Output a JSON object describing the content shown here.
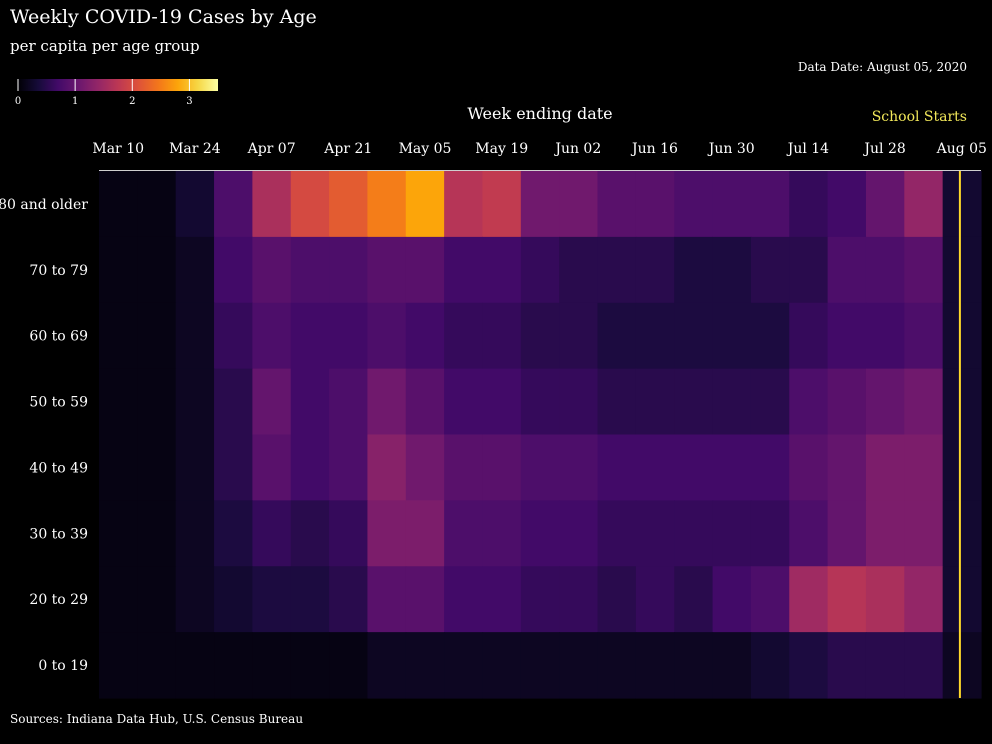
{
  "chart_data": {
    "type": "heatmap",
    "title": "Weekly COVID-19 Cases by Age",
    "subtitle": "per capita per age group",
    "data_date": "Data Date: August 05, 2020",
    "xlabel": "Week ending date",
    "ylabel": "",
    "sources": "Sources: Indiana Data Hub, U.S. Census Bureau",
    "annotation": {
      "label": "School Starts",
      "at_week": "Aug 05",
      "color": "#ffd92a"
    },
    "colorscale": {
      "name": "inferno",
      "min": 0,
      "max": 3.5,
      "ticks": [
        0,
        1,
        2,
        3
      ]
    },
    "x_ticks": [
      "Mar 10",
      "Mar 24",
      "Apr 07",
      "Apr 21",
      "May 05",
      "May 19",
      "Jun 02",
      "Jun 16",
      "Jun 30",
      "Jul 14",
      "Jul 28",
      "Aug 05"
    ],
    "weeks": [
      "Mar 10",
      "Mar 17",
      "Mar 24",
      "Mar 31",
      "Apr 07",
      "Apr 14",
      "Apr 21",
      "Apr 28",
      "May 05",
      "May 12",
      "May 19",
      "May 26",
      "Jun 02",
      "Jun 09",
      "Jun 16",
      "Jun 23",
      "Jun 30",
      "Jul 07",
      "Jul 14",
      "Jul 21",
      "Jul 28",
      "Aug 04",
      "Aug 05"
    ],
    "age_groups": [
      "80 and older",
      "70 to 79",
      "60 to 69",
      "50 to 59",
      "40 to 49",
      "30 to 39",
      "20 to 29",
      "0 to 19"
    ],
    "values": [
      [
        0.1,
        0.1,
        0.3,
        0.8,
        1.6,
        2.0,
        2.2,
        2.5,
        2.8,
        1.7,
        1.8,
        1.1,
        1.1,
        0.9,
        0.9,
        0.8,
        0.8,
        0.8,
        0.6,
        0.7,
        1.0,
        1.4,
        0.3
      ],
      [
        0.1,
        0.1,
        0.2,
        0.7,
        0.9,
        0.8,
        0.8,
        0.9,
        0.9,
        0.7,
        0.7,
        0.6,
        0.5,
        0.5,
        0.5,
        0.4,
        0.4,
        0.5,
        0.5,
        0.8,
        0.8,
        0.9,
        0.3
      ],
      [
        0.1,
        0.1,
        0.2,
        0.6,
        0.8,
        0.7,
        0.7,
        0.8,
        0.7,
        0.6,
        0.6,
        0.5,
        0.5,
        0.4,
        0.4,
        0.4,
        0.4,
        0.4,
        0.6,
        0.7,
        0.7,
        0.8,
        0.3
      ],
      [
        0.1,
        0.1,
        0.2,
        0.5,
        1.0,
        0.7,
        0.8,
        1.1,
        0.9,
        0.7,
        0.7,
        0.6,
        0.6,
        0.5,
        0.5,
        0.5,
        0.5,
        0.5,
        0.8,
        0.9,
        1.0,
        1.1,
        0.3
      ],
      [
        0.1,
        0.1,
        0.2,
        0.5,
        0.9,
        0.7,
        0.8,
        1.3,
        1.1,
        0.9,
        0.9,
        0.8,
        0.8,
        0.7,
        0.7,
        0.7,
        0.7,
        0.7,
        0.9,
        1.0,
        1.2,
        1.2,
        0.3
      ],
      [
        0.1,
        0.1,
        0.2,
        0.4,
        0.6,
        0.5,
        0.6,
        1.2,
        1.2,
        0.8,
        0.8,
        0.7,
        0.7,
        0.6,
        0.6,
        0.6,
        0.6,
        0.6,
        0.8,
        1.0,
        1.2,
        1.2,
        0.3
      ],
      [
        0.1,
        0.1,
        0.2,
        0.3,
        0.4,
        0.4,
        0.5,
        0.9,
        0.9,
        0.7,
        0.7,
        0.6,
        0.6,
        0.5,
        0.6,
        0.5,
        0.7,
        0.8,
        1.5,
        1.7,
        1.6,
        1.4,
        0.3
      ],
      [
        0.1,
        0.1,
        0.1,
        0.1,
        0.1,
        0.1,
        0.1,
        0.2,
        0.2,
        0.2,
        0.2,
        0.2,
        0.2,
        0.2,
        0.2,
        0.2,
        0.2,
        0.3,
        0.4,
        0.5,
        0.5,
        0.5,
        0.2
      ]
    ]
  }
}
